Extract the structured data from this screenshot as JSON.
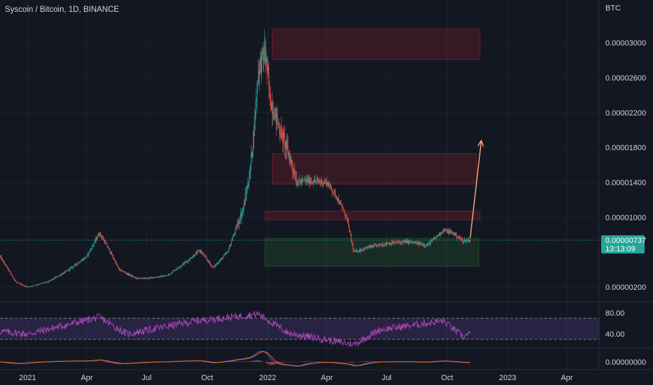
{
  "chart_data": {
    "type": "candlestick",
    "title": "Syscoin / Bitcoin, 1D, BINANCE",
    "currency_label": "BTC",
    "price_axis": {
      "ticks": [
        "0.00003000",
        "0.00002600",
        "0.00002200",
        "0.00001800",
        "0.00001400",
        "0.00001000",
        "0.00000200"
      ],
      "ylim": [
        4e-07,
        3.25e-05
      ]
    },
    "time_axis": {
      "ticks": [
        "2021",
        "Apr",
        "Jul",
        "Oct",
        "2022",
        "Apr",
        "Jul",
        "Oct",
        "2023",
        "Apr"
      ],
      "xlim": [
        "2020-11-20",
        "2023-05-20"
      ]
    },
    "last_price": {
      "value": 7.37e-06,
      "label": "0.00000737",
      "countdown": "13:13:09"
    },
    "price_path": [
      [
        "2020-11-20",
        5.5e-06
      ],
      [
        "2020-12-15",
        2.5e-06
      ],
      [
        "2021-01-01",
        2e-06
      ],
      [
        "2021-02-01",
        2.6e-06
      ],
      [
        "2021-03-01",
        3.8e-06
      ],
      [
        "2021-04-01",
        5.5e-06
      ],
      [
        "2021-04-20",
        8.2e-06
      ],
      [
        "2021-05-05",
        6.3e-06
      ],
      [
        "2021-05-20",
        4e-06
      ],
      [
        "2021-06-15",
        3e-06
      ],
      [
        "2021-07-01",
        3e-06
      ],
      [
        "2021-08-01",
        3.3e-06
      ],
      [
        "2021-09-01",
        5e-06
      ],
      [
        "2021-09-20",
        6.2e-06
      ],
      [
        "2021-10-10",
        4.2e-06
      ],
      [
        "2021-11-01",
        6e-06
      ],
      [
        "2021-11-25",
        1.1e-05
      ],
      [
        "2021-12-05",
        1.5e-05
      ],
      [
        "2021-12-12",
        2.1e-05
      ],
      [
        "2021-12-18",
        2.7e-05
      ],
      [
        "2021-12-28",
        2.9e-05
      ],
      [
        "2022-01-05",
        2.35e-05
      ],
      [
        "2022-01-20",
        2e-05
      ],
      [
        "2022-02-01",
        1.75e-05
      ],
      [
        "2022-02-15",
        1.4e-05
      ],
      [
        "2022-03-01",
        1.42e-05
      ],
      [
        "2022-04-01",
        1.4e-05
      ],
      [
        "2022-04-15",
        1.25e-05
      ],
      [
        "2022-05-01",
        1e-05
      ],
      [
        "2022-05-12",
        6e-06
      ],
      [
        "2022-06-01",
        6.5e-06
      ],
      [
        "2022-07-01",
        7e-06
      ],
      [
        "2022-08-01",
        7.2e-06
      ],
      [
        "2022-09-01",
        6.8e-06
      ],
      [
        "2022-09-25",
        8.5e-06
      ],
      [
        "2022-10-10",
        8.2e-06
      ],
      [
        "2022-10-25",
        7.3e-06
      ],
      [
        "2022-11-05",
        7.4e-06
      ]
    ],
    "price_zones": [
      {
        "from": "2022-01-08",
        "to": "2022-11-20",
        "low": 2.81e-05,
        "high": 3.16e-05,
        "color": "#b22833"
      },
      {
        "from": "2022-01-08",
        "to": "2022-11-15",
        "low": 1.38e-05,
        "high": 1.73e-05,
        "color": "#b22833"
      },
      {
        "from": "2021-12-28",
        "to": "2022-11-20",
        "low": 9.7e-06,
        "high": 1.07e-05,
        "color": "#b22833"
      },
      {
        "from": "2021-12-28",
        "to": "2022-11-18",
        "low": 4.4e-06,
        "high": 7.6e-06,
        "color": "#2e7d32"
      }
    ],
    "arrow": {
      "from": [
        "2022-11-05",
        7.6e-06
      ],
      "to": [
        "2022-11-22",
        1.88e-05
      ],
      "color": "#f5a27f"
    },
    "rsi": {
      "ticks": [
        "80.00",
        "40.00"
      ],
      "ylim": [
        15,
        100
      ],
      "upper": 70,
      "lower": 30,
      "color": "#ab47bc",
      "band_color": "#7e57c2",
      "path": [
        [
          "2020-11-20",
          45
        ],
        [
          "2021-01-01",
          40
        ],
        [
          "2021-04-20",
          72
        ],
        [
          "2021-06-01",
          40
        ],
        [
          "2021-09-15",
          65
        ],
        [
          "2021-12-18",
          78
        ],
        [
          "2022-02-01",
          42
        ],
        [
          "2022-05-12",
          20
        ],
        [
          "2022-06-20",
          48
        ],
        [
          "2022-09-25",
          65
        ],
        [
          "2022-10-25",
          35
        ],
        [
          "2022-11-05",
          40
        ]
      ]
    },
    "macd": {
      "tick": "0.00000000",
      "colors": {
        "macd": "#2962ff",
        "signal": "#ff6d00",
        "hist_pos": "#26a69a",
        "hist_neg": "#ef5350"
      }
    },
    "colors": {
      "up": "#26a69a",
      "down": "#ef5350",
      "background": "#131722",
      "text": "#d1d4dc"
    }
  }
}
